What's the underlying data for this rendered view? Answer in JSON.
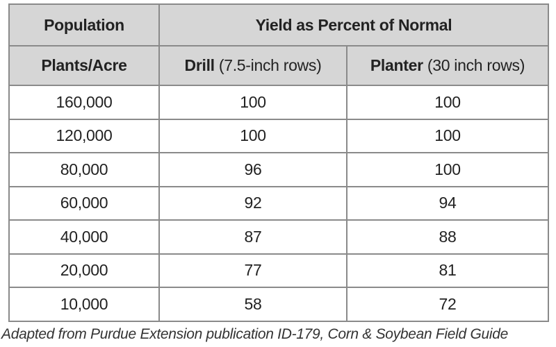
{
  "table": {
    "header": {
      "population": "Population",
      "yield_group": "Yield as Percent of Normal",
      "plants_acre": "Plants/Acre",
      "drill_bold": "Drill",
      "drill_rest": " (7.5-inch rows)",
      "planter_bold": "Planter",
      "planter_rest": " (30 inch rows)"
    },
    "rows": [
      {
        "population": "160,000",
        "drill": "100",
        "planter": "100"
      },
      {
        "population": "120,000",
        "drill": "100",
        "planter": "100"
      },
      {
        "population": "80,000",
        "drill": "96",
        "planter": "100"
      },
      {
        "population": "60,000",
        "drill": "92",
        "planter": "94"
      },
      {
        "population": "40,000",
        "drill": "87",
        "planter": "88"
      },
      {
        "population": "20,000",
        "drill": "77",
        "planter": "81"
      },
      {
        "population": "10,000",
        "drill": "58",
        "planter": "72"
      }
    ]
  },
  "caption": {
    "prefix": "Adapted from Purdue Extension publication ",
    "pub_id": "ID-179",
    "suffix": ", Corn & Soybean Field Guide"
  },
  "colors": {
    "header_bg": "#d6d6d6",
    "border": "#8a8a8a"
  }
}
